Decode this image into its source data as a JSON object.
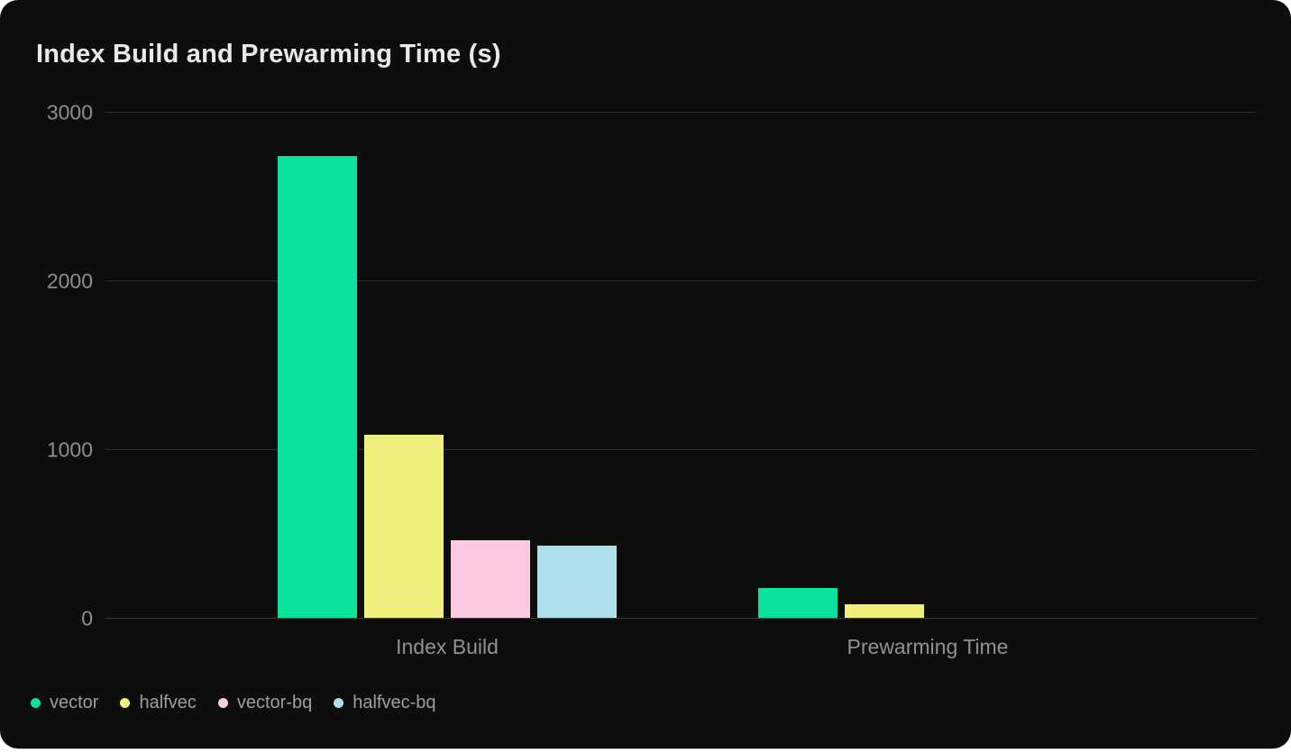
{
  "page": {
    "background_color": "#ffffff",
    "card_background_color": "#0d0d0c"
  },
  "chart": {
    "title": "Index Build and Prewarming Time (s)"
  },
  "chart_data": {
    "type": "bar",
    "title": "Index Build and Prewarming Time (s)",
    "categories": [
      "Index Build",
      "Prewarming Time"
    ],
    "series": [
      {
        "name": "vector",
        "color": "#0BE29D",
        "values": [
          2740,
          175
        ]
      },
      {
        "name": "halfvec",
        "color": "#EFF07C",
        "values": [
          1085,
          80
        ]
      },
      {
        "name": "vector-bq",
        "color": "#FDCAE1",
        "values": [
          460,
          0
        ]
      },
      {
        "name": "halfvec-bq",
        "color": "#ADE0EA",
        "values": [
          430,
          0
        ]
      }
    ],
    "ylabel": "",
    "xlabel": "",
    "ylim": [
      0,
      3000
    ],
    "yticks": [
      0,
      1000,
      2000,
      3000
    ],
    "grid": true,
    "legend_position": "bottom-left",
    "colors": {
      "gridline": "#2b2b2b",
      "axis_text": "#8f8f8f",
      "title_text": "#e9e9e9",
      "legend_text": "#9e9e9e"
    }
  }
}
